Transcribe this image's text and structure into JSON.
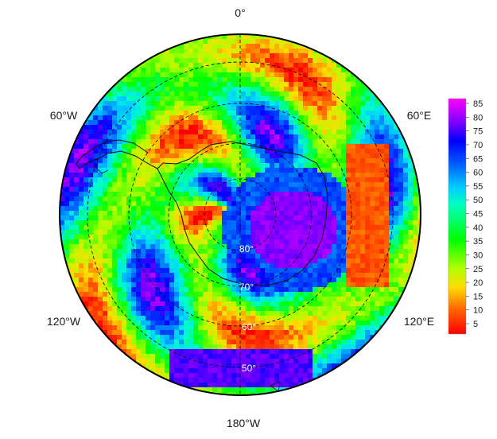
{
  "map": {
    "projection": "south-polar-stereographic",
    "longitude_labels": [
      {
        "key": "n",
        "text": "0°"
      },
      {
        "key": "nw",
        "text": "60°W"
      },
      {
        "key": "ne",
        "text": "60°E"
      },
      {
        "key": "sw",
        "text": "120°W"
      },
      {
        "key": "se",
        "text": "120°E"
      },
      {
        "key": "s",
        "text": "180°W"
      }
    ],
    "latitude_labels": [
      "80°",
      "70°",
      "60°",
      "50°"
    ],
    "colorscale": {
      "ticks": [
        "85",
        "80",
        "75",
        "70",
        "65",
        "60",
        "55",
        "50",
        "45",
        "40",
        "35",
        "30",
        "25",
        "20",
        "15",
        "10",
        "5"
      ],
      "min": 0,
      "max": 88,
      "colors": [
        "#ff0000",
        "#ff8000",
        "#ffff00",
        "#00ff00",
        "#00ffff",
        "#0000ff",
        "#ff00ff"
      ]
    }
  }
}
